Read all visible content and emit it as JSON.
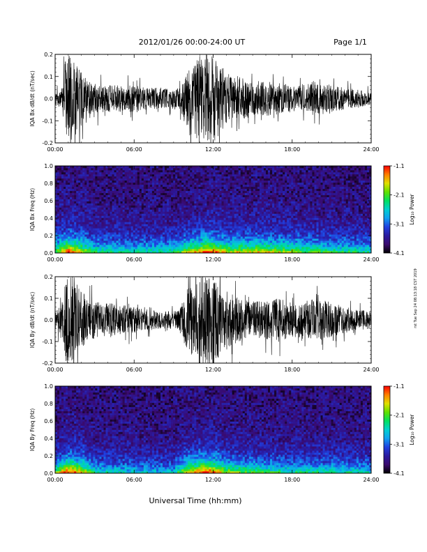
{
  "header": {
    "date_range": "2012/01/26  00:00-24:00 UT",
    "page": "Page 1/1"
  },
  "side_note": "rst Tue Sep 24 08:13:18 CST 2019",
  "xlabel": "Universal Time (hh:mm)",
  "colorbar": {
    "label": "Log₁₀ Power",
    "ticks": [
      "-1.1",
      "-2.1",
      "-3.1",
      "-4.1"
    ],
    "colors": [
      "#000000",
      "#3a0a6e",
      "#2a1aa0",
      "#2040e0",
      "#10a0f0",
      "#00d0d0",
      "#00e060",
      "#60e000",
      "#e0e000",
      "#ff8000",
      "#ff0000"
    ]
  },
  "chart_data": [
    {
      "type": "line",
      "name": "bx-dbdt",
      "title": "",
      "xlabel": "",
      "ylabel": "IQA Bx dB/dt (nT/sec)",
      "xlim": [
        0,
        24
      ],
      "ylim": [
        -0.2,
        0.2
      ],
      "xticks": [
        "00:00",
        "06:00",
        "12:00",
        "18:00",
        "24:00"
      ],
      "yticks": [
        "0.2",
        "0.1",
        "0.0",
        "-0.1",
        "-0.2"
      ],
      "envelope": {
        "x": [
          0,
          0.5,
          0.8,
          1.0,
          1.3,
          1.6,
          2.0,
          2.5,
          3,
          4,
          5,
          6,
          7,
          8,
          9,
          9.5,
          10,
          11,
          11.5,
          12,
          12.5,
          13,
          14,
          15,
          16,
          17,
          18,
          19,
          20,
          21,
          22,
          23,
          24
        ],
        "amplitude": [
          0.03,
          0.05,
          0.18,
          0.2,
          0.2,
          0.16,
          0.12,
          0.08,
          0.07,
          0.06,
          0.06,
          0.06,
          0.05,
          0.05,
          0.04,
          0.05,
          0.12,
          0.2,
          0.2,
          0.2,
          0.16,
          0.12,
          0.1,
          0.08,
          0.08,
          0.07,
          0.06,
          0.07,
          0.08,
          0.06,
          0.05,
          0.04,
          0.03
        ]
      }
    },
    {
      "type": "heatmap",
      "name": "bx-spectrogram",
      "title": "",
      "xlabel": "",
      "ylabel": "IQA Bx Freq (Hz)",
      "xlim": [
        0,
        24
      ],
      "ylim": [
        0,
        1.0
      ],
      "xticks": [
        "00:00",
        "06:00",
        "12:00",
        "18:00",
        "24:00"
      ],
      "yticks": [
        "1.0",
        "0.8",
        "0.6",
        "0.4",
        "0.2",
        "0.0"
      ],
      "zlim": [
        -4.1,
        -1.1
      ],
      "activity": {
        "x": [
          0,
          1,
          1.5,
          2,
          3,
          6,
          9,
          10,
          11.5,
          12,
          13,
          15,
          18,
          21,
          24
        ],
        "level": [
          0.6,
          1.0,
          0.9,
          0.8,
          0.55,
          0.5,
          0.5,
          0.75,
          1.0,
          0.95,
          0.75,
          0.8,
          0.7,
          0.55,
          0.5
        ]
      }
    },
    {
      "type": "line",
      "name": "by-dbdt",
      "title": "",
      "xlabel": "",
      "ylabel": "IQA By dB/dt (nT/sec)",
      "xlim": [
        0,
        24
      ],
      "ylim": [
        -0.2,
        0.2
      ],
      "xticks": [
        "00:00",
        "06:00",
        "12:00",
        "18:00",
        "24:00"
      ],
      "yticks": [
        "0.2",
        "0.1",
        "0.0",
        "-0.1",
        "-0.2"
      ],
      "envelope": {
        "x": [
          0,
          0.5,
          0.8,
          1.0,
          1.3,
          1.6,
          2.0,
          2.5,
          3,
          4,
          5,
          6,
          7,
          8,
          9,
          9.5,
          10,
          11,
          11.5,
          12,
          12.5,
          13,
          14,
          15,
          16,
          17,
          18,
          19,
          20,
          21,
          22,
          23,
          24
        ],
        "amplitude": [
          0.04,
          0.07,
          0.2,
          0.2,
          0.2,
          0.18,
          0.14,
          0.1,
          0.09,
          0.08,
          0.07,
          0.06,
          0.05,
          0.04,
          0.04,
          0.06,
          0.14,
          0.2,
          0.2,
          0.2,
          0.18,
          0.14,
          0.1,
          0.09,
          0.09,
          0.1,
          0.08,
          0.09,
          0.1,
          0.08,
          0.06,
          0.05,
          0.04
        ]
      }
    },
    {
      "type": "heatmap",
      "name": "by-spectrogram",
      "title": "",
      "xlabel": "",
      "ylabel": "IQA By Freq (Hz)",
      "xlim": [
        0,
        24
      ],
      "ylim": [
        0,
        1.0
      ],
      "xticks": [
        "00:00",
        "06:00",
        "12:00",
        "18:00",
        "24:00"
      ],
      "yticks": [
        "1.0",
        "0.8",
        "0.6",
        "0.4",
        "0.2",
        "0.0"
      ],
      "zlim": [
        -4.1,
        -1.1
      ],
      "activity": {
        "x": [
          0,
          1,
          1.5,
          2,
          3,
          6,
          9,
          10,
          11.5,
          12,
          13,
          15,
          18,
          21,
          24
        ],
        "level": [
          0.6,
          1.0,
          0.95,
          0.85,
          0.5,
          0.4,
          0.4,
          0.8,
          1.0,
          0.95,
          0.7,
          0.6,
          0.5,
          0.5,
          0.45
        ]
      }
    }
  ]
}
